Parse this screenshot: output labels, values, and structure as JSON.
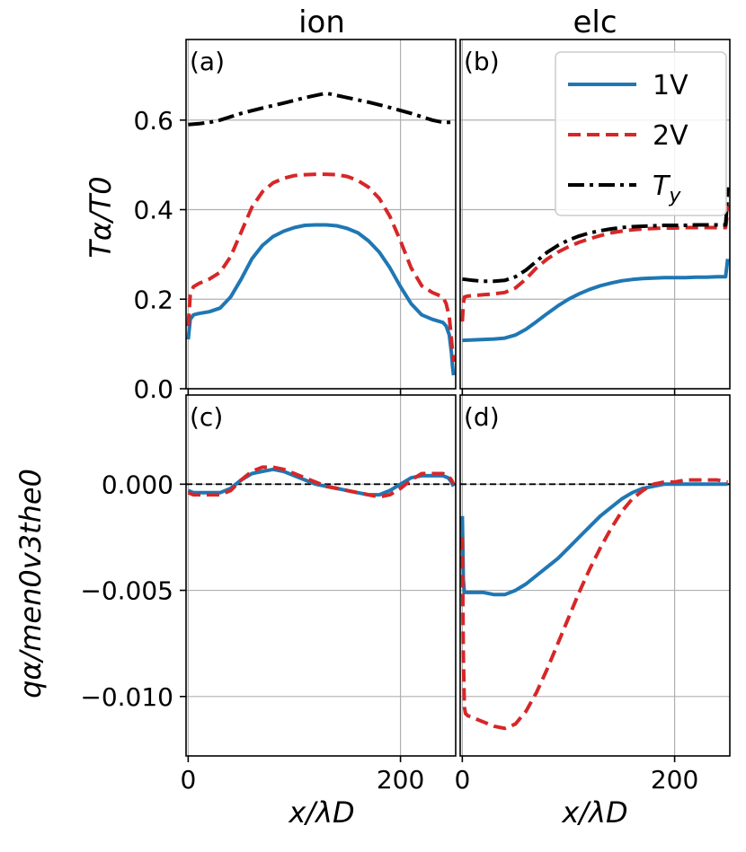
{
  "figure": {
    "ylabel_top": "Tα/T0",
    "ylabel_bottom": "qα/men0v3the0",
    "xlabel": "x/λD"
  },
  "colors": {
    "1V": "#1f77b4",
    "2V": "#d62728",
    "Ty": "#000000"
  },
  "chart_data": [
    {
      "id": "a",
      "panel_label": "(a)",
      "column_title": "ion",
      "type": "line",
      "xlim": [
        -2,
        252
      ],
      "ylim": [
        0,
        0.78
      ],
      "xticks": [
        {
          "v": 0,
          "label": "0"
        },
        {
          "v": 200,
          "label": "200"
        }
      ],
      "yticks": [
        {
          "v": 0.0,
          "label": "0.0"
        },
        {
          "v": 0.2,
          "label": "0.2"
        },
        {
          "v": 0.4,
          "label": "0.4"
        },
        {
          "v": 0.6,
          "label": "0.6"
        }
      ],
      "series": [
        {
          "name": "1V",
          "style": "solid",
          "x": [
            0,
            2,
            5,
            10,
            20,
            30,
            40,
            50,
            60,
            70,
            80,
            90,
            100,
            110,
            120,
            130,
            140,
            150,
            160,
            170,
            180,
            190,
            200,
            210,
            220,
            230,
            240,
            243,
            246,
            248,
            249,
            250
          ],
          "y": [
            0.11,
            0.155,
            0.165,
            0.168,
            0.172,
            0.18,
            0.205,
            0.245,
            0.29,
            0.32,
            0.34,
            0.352,
            0.36,
            0.365,
            0.366,
            0.366,
            0.364,
            0.358,
            0.348,
            0.33,
            0.305,
            0.27,
            0.228,
            0.19,
            0.165,
            0.155,
            0.148,
            0.14,
            0.12,
            0.08,
            0.05,
            0.03
          ]
        },
        {
          "name": "2V",
          "style": "dashed",
          "x": [
            0,
            2,
            5,
            10,
            20,
            30,
            40,
            50,
            60,
            70,
            80,
            90,
            100,
            110,
            120,
            130,
            140,
            150,
            160,
            170,
            180,
            190,
            200,
            210,
            220,
            230,
            240,
            243,
            246,
            248,
            250
          ],
          "y": [
            0.14,
            0.21,
            0.228,
            0.235,
            0.245,
            0.26,
            0.295,
            0.35,
            0.405,
            0.44,
            0.46,
            0.47,
            0.476,
            0.478,
            0.479,
            0.479,
            0.478,
            0.474,
            0.465,
            0.45,
            0.425,
            0.385,
            0.33,
            0.27,
            0.23,
            0.215,
            0.205,
            0.19,
            0.16,
            0.11,
            0.06
          ]
        },
        {
          "name": "Ty",
          "style": "dashdot",
          "x": [
            0,
            10,
            20,
            30,
            50,
            70,
            90,
            110,
            130,
            150,
            170,
            190,
            210,
            230,
            240,
            250
          ],
          "y": [
            0.59,
            0.592,
            0.595,
            0.6,
            0.615,
            0.627,
            0.638,
            0.65,
            0.66,
            0.65,
            0.64,
            0.628,
            0.615,
            0.6,
            0.595,
            0.595
          ]
        }
      ]
    },
    {
      "id": "b",
      "panel_label": "(b)",
      "column_title": "elc",
      "type": "line",
      "xlim": [
        -2,
        252
      ],
      "ylim": [
        0,
        0.78
      ],
      "xticks": [
        {
          "v": 0,
          "label": "0"
        },
        {
          "v": 200,
          "label": "200"
        }
      ],
      "yticks": [],
      "legend": {
        "position": "top-right",
        "entries": [
          {
            "key": "1V",
            "label": "1V"
          },
          {
            "key": "2V",
            "label": "2V"
          },
          {
            "key": "Ty",
            "label": "T",
            "sub": "y"
          }
        ]
      },
      "series": [
        {
          "name": "1V",
          "style": "solid",
          "x": [
            0,
            10,
            20,
            30,
            40,
            50,
            60,
            70,
            80,
            90,
            100,
            110,
            120,
            130,
            140,
            150,
            160,
            170,
            180,
            190,
            200,
            210,
            220,
            230,
            240,
            248,
            249,
            250
          ],
          "y": [
            0.108,
            0.109,
            0.11,
            0.111,
            0.113,
            0.12,
            0.133,
            0.15,
            0.168,
            0.185,
            0.2,
            0.212,
            0.222,
            0.23,
            0.236,
            0.241,
            0.244,
            0.246,
            0.247,
            0.248,
            0.248,
            0.248,
            0.249,
            0.249,
            0.25,
            0.25,
            0.27,
            0.29
          ]
        },
        {
          "name": "2V",
          "style": "dashed",
          "x": [
            0,
            1,
            2,
            5,
            10,
            20,
            30,
            40,
            50,
            60,
            70,
            80,
            90,
            100,
            110,
            120,
            130,
            140,
            150,
            160,
            170,
            180,
            190,
            200,
            210,
            220,
            230,
            240,
            248,
            249,
            250
          ],
          "y": [
            0.15,
            0.19,
            0.205,
            0.207,
            0.208,
            0.21,
            0.212,
            0.215,
            0.225,
            0.245,
            0.27,
            0.29,
            0.305,
            0.317,
            0.327,
            0.335,
            0.342,
            0.348,
            0.352,
            0.355,
            0.357,
            0.358,
            0.359,
            0.359,
            0.36,
            0.36,
            0.36,
            0.36,
            0.36,
            0.38,
            0.41
          ]
        },
        {
          "name": "Ty",
          "style": "dashdot",
          "x": [
            0,
            10,
            20,
            30,
            40,
            50,
            60,
            70,
            80,
            90,
            100,
            110,
            120,
            130,
            140,
            150,
            160,
            170,
            180,
            190,
            200,
            210,
            220,
            230,
            240,
            248,
            249,
            250
          ],
          "y": [
            0.245,
            0.242,
            0.24,
            0.24,
            0.242,
            0.25,
            0.265,
            0.285,
            0.305,
            0.32,
            0.332,
            0.341,
            0.348,
            0.353,
            0.357,
            0.36,
            0.362,
            0.363,
            0.364,
            0.365,
            0.365,
            0.365,
            0.366,
            0.366,
            0.366,
            0.366,
            0.4,
            0.45
          ]
        }
      ]
    },
    {
      "id": "c",
      "panel_label": "(c)",
      "type": "line",
      "xlim": [
        -2,
        252
      ],
      "ylim": [
        -0.0128,
        0.0042
      ],
      "xticks": [
        {
          "v": 0,
          "label": "0"
        },
        {
          "v": 200,
          "label": "200"
        }
      ],
      "yticks": [
        {
          "v": 0.0,
          "label": "0.000"
        },
        {
          "v": -0.005,
          "label": "−0.005"
        },
        {
          "v": -0.01,
          "label": "−0.010"
        }
      ],
      "zero_line": true,
      "series": [
        {
          "name": "1V",
          "style": "solid",
          "x": [
            0,
            5,
            10,
            20,
            30,
            40,
            50,
            60,
            70,
            80,
            90,
            100,
            110,
            120,
            130,
            140,
            150,
            160,
            170,
            180,
            190,
            200,
            210,
            220,
            230,
            240,
            245,
            248,
            250
          ],
          "y": [
            -0.0003,
            -0.0004,
            -0.0004,
            -0.0004,
            -0.0004,
            -0.0002,
            0.0002,
            0.0005,
            0.0006,
            0.0007,
            0.0006,
            0.0004,
            0.0002,
            0.0,
            -0.0001,
            -0.0002,
            -0.0003,
            -0.0004,
            -0.0005,
            -0.0005,
            -0.0003,
            0.0,
            0.0003,
            0.0004,
            0.0004,
            0.0004,
            0.0003,
            0.0001,
            -0.0001
          ]
        },
        {
          "name": "2V",
          "style": "dashed",
          "x": [
            0,
            5,
            10,
            20,
            30,
            40,
            50,
            60,
            70,
            80,
            90,
            100,
            110,
            120,
            130,
            140,
            150,
            160,
            170,
            180,
            190,
            200,
            210,
            220,
            230,
            240,
            245,
            248,
            250
          ],
          "y": [
            -0.0004,
            -0.0005,
            -0.0005,
            -0.0005,
            -0.0005,
            -0.0003,
            0.0002,
            0.0006,
            0.0008,
            0.0008,
            0.0007,
            0.0005,
            0.0003,
            0.0001,
            -0.0001,
            -0.0002,
            -0.0003,
            -0.0004,
            -0.0005,
            -0.0006,
            -0.0005,
            -0.0002,
            0.0002,
            0.0005,
            0.0005,
            0.0005,
            0.0004,
            0.0002,
            0.0
          ]
        }
      ]
    },
    {
      "id": "d",
      "panel_label": "(d)",
      "type": "line",
      "xlim": [
        -2,
        252
      ],
      "ylim": [
        -0.0128,
        0.0042
      ],
      "xticks": [
        {
          "v": 0,
          "label": "0"
        },
        {
          "v": 200,
          "label": "200"
        }
      ],
      "yticks": [],
      "zero_line": true,
      "series": [
        {
          "name": "1V",
          "style": "solid",
          "x": [
            0,
            1,
            2,
            5,
            10,
            20,
            30,
            40,
            50,
            60,
            70,
            80,
            90,
            100,
            110,
            120,
            130,
            140,
            150,
            160,
            170,
            180,
            190,
            200,
            210,
            220,
            230,
            240,
            250
          ],
          "y": [
            -0.0015,
            -0.0045,
            -0.0051,
            -0.0051,
            -0.0051,
            -0.0051,
            -0.0052,
            -0.0052,
            -0.005,
            -0.0047,
            -0.0043,
            -0.0039,
            -0.0035,
            -0.003,
            -0.0025,
            -0.002,
            -0.0015,
            -0.0011,
            -0.0007,
            -0.0004,
            -0.0002,
            -0.0001,
            0.0,
            0.0,
            0.0,
            0.0,
            0.0,
            0.0,
            0.0
          ]
        },
        {
          "name": "2V",
          "style": "dashed",
          "x": [
            0,
            1,
            2,
            3,
            5,
            10,
            20,
            30,
            40,
            50,
            60,
            70,
            80,
            90,
            100,
            110,
            120,
            130,
            140,
            150,
            160,
            170,
            180,
            190,
            200,
            210,
            220,
            230,
            240,
            250
          ],
          "y": [
            -0.0025,
            -0.008,
            -0.0105,
            -0.0108,
            -0.0109,
            -0.011,
            -0.0112,
            -0.0114,
            -0.0115,
            -0.0113,
            -0.0107,
            -0.0098,
            -0.0087,
            -0.0075,
            -0.0063,
            -0.0051,
            -0.004,
            -0.003,
            -0.0021,
            -0.0013,
            -0.0007,
            -0.0003,
            0.0,
            0.0001,
            0.0001,
            0.0002,
            0.0002,
            0.0002,
            0.0002,
            0.0001
          ]
        }
      ]
    }
  ]
}
